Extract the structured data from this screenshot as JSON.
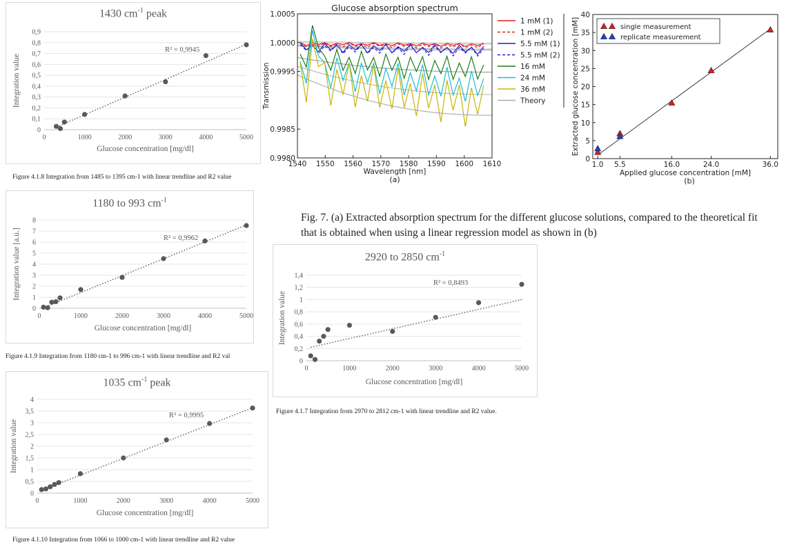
{
  "chart_data": [
    {
      "id": "c1430",
      "type": "scatter",
      "title": "1430 cm-1 peak",
      "title_main": "1430 cm",
      "title_sup": "-1",
      "title_rest": " peak",
      "xlabel": "Glucose concentration [mg/dl]",
      "ylabel": "Integration value",
      "xlim": [
        0,
        5000
      ],
      "ylim": [
        0,
        0.9
      ],
      "xticks": [
        "0",
        "1000",
        "2000",
        "3000",
        "4000",
        "5000"
      ],
      "yticks": [
        "0",
        "0,1",
        "0,2",
        "0,3",
        "0,4",
        "0,5",
        "0,6",
        "0,7",
        "0,8",
        "0,9"
      ],
      "x": [
        300,
        400,
        500,
        1000,
        2000,
        3000,
        4000,
        5000
      ],
      "y": [
        0.03,
        0.01,
        0.07,
        0.14,
        0.31,
        0.44,
        0.68,
        0.78
      ],
      "trendline": [
        [
          250,
          0.015
        ],
        [
          5000,
          0.785
        ]
      ],
      "r2": "R² = 0,9945",
      "caption": "Figure 4.1.8 Integration from 1485 to 1395 cm-1 with linear trendline and R2 value"
    },
    {
      "id": "c1180",
      "type": "scatter",
      "title": "1180 to 993 cm-1",
      "title_main": "1180 to 993 cm",
      "title_sup": "-1",
      "title_rest": "",
      "xlabel": "Glucose concentration [mg/dl]",
      "ylabel": "Integration value [a.u.]",
      "xlim": [
        0,
        5000
      ],
      "ylim": [
        0,
        8
      ],
      "xticks": [
        "0",
        "1000",
        "2000",
        "3000",
        "4000",
        "5000"
      ],
      "yticks": [
        "0",
        "1",
        "2",
        "3",
        "4",
        "5",
        "6",
        "7",
        "8"
      ],
      "x": [
        100,
        200,
        300,
        400,
        500,
        1000,
        2000,
        3000,
        4000,
        5000
      ],
      "y": [
        0.1,
        0.05,
        0.55,
        0.6,
        0.95,
        1.7,
        2.8,
        4.5,
        6.1,
        7.5
      ],
      "trendline": [
        [
          100,
          0.05
        ],
        [
          5000,
          7.55
        ]
      ],
      "r2": "R² = 0,9962",
      "caption": "Figure 4.1.9 Integration from 1180 cm-1 to 996 cm-1 with linear trendline and R2 val"
    },
    {
      "id": "c1035",
      "type": "scatter",
      "title": "1035 cm-1 peak",
      "title_main": "1035 cm",
      "title_sup": "-1",
      "title_rest": " peak",
      "xlabel": "Glucose concentration [mg/dl]",
      "ylabel": "Integration value",
      "xlim": [
        0,
        5000
      ],
      "ylim": [
        0,
        4
      ],
      "xticks": [
        "0",
        "1000",
        "2000",
        "3000",
        "4000",
        "5000"
      ],
      "yticks": [
        "0",
        "0,5",
        "1",
        "1,5",
        "2",
        "2,5",
        "3",
        "3,5",
        "4"
      ],
      "x": [
        100,
        200,
        300,
        400,
        500,
        1000,
        2000,
        3000,
        4000,
        5000
      ],
      "y": [
        0.15,
        0.18,
        0.27,
        0.37,
        0.45,
        0.83,
        1.5,
        2.27,
        2.97,
        3.63
      ],
      "trendline": [
        [
          100,
          0.12
        ],
        [
          5000,
          3.64
        ]
      ],
      "r2": "R² = 0,9995",
      "caption": "Figure 4.1.10 Integration from 1066 to 1000 cm-1 with linear trendline and R2 value"
    },
    {
      "id": "c2920",
      "type": "scatter",
      "title": "2920 to 2850 cm-1",
      "title_main": "2920 to 2850 cm",
      "title_sup": "-1",
      "title_rest": "",
      "xlabel": "Glucose concentration [mg/dl]",
      "ylabel": "Integration value",
      "xlim": [
        0,
        5000
      ],
      "ylim": [
        0,
        1.4
      ],
      "xticks": [
        "0",
        "1000",
        "2000",
        "3000",
        "4000",
        "5000"
      ],
      "yticks": [
        "0",
        "0,2",
        "0,4",
        "0,6",
        "0,8",
        "1",
        "1,2",
        "1,4"
      ],
      "x": [
        100,
        200,
        300,
        400,
        500,
        1000,
        2000,
        3000,
        4000,
        5000
      ],
      "y": [
        0.08,
        0.02,
        0.32,
        0.4,
        0.51,
        0.58,
        0.48,
        0.71,
        0.95,
        1.25
      ],
      "trendline": [
        [
          100,
          0.22
        ],
        [
          5000,
          1.0
        ]
      ],
      "r2": "R² = 0,8493",
      "caption": "Figure 4.1.7 Integration from 2970 to 2812 cm-1 with linear trendline and R2 value."
    },
    {
      "id": "spectrum",
      "type": "line",
      "title": "Glucose absorption spectrum",
      "xlabel": "Wavelength [nm]",
      "ylabel": "Transmission",
      "sublabel": "(a)",
      "xlim": [
        1540,
        1610
      ],
      "ylim": [
        0.998,
        1.0005
      ],
      "xticks": [
        "1540",
        "1550",
        "1560",
        "1570",
        "1580",
        "1590",
        "1600",
        "1610"
      ],
      "yticks": [
        "0.9980",
        "0.9985",
        "0.9995",
        "1.0000",
        "1.0005"
      ],
      "ytick_values": [
        0.998,
        0.9985,
        0.9995,
        1.0,
        1.0005
      ],
      "legend_position": "right",
      "series": [
        {
          "name": "1 mM (1)",
          "color": "#e41a1c",
          "dash": "",
          "base": 0.99998,
          "amp": 3e-05,
          "decay": 2e-05
        },
        {
          "name": "1 mM (2)",
          "color": "#e41a1c",
          "dash": "4,3",
          "base": 0.99996,
          "amp": 4e-05,
          "decay": 2e-05
        },
        {
          "name": "5.5 mM (1)",
          "color": "#1f1fd0",
          "dash": "",
          "base": 0.99992,
          "amp": 8e-05,
          "decay": 5e-05
        },
        {
          "name": "5.5 mM (2)",
          "color": "#1f1fd0",
          "dash": "4,3",
          "base": 0.9999,
          "amp": 9e-05,
          "decay": 5e-05
        },
        {
          "name": "16 mM",
          "color": "#1a7a1a",
          "dash": "",
          "base": 0.9997,
          "amp": 0.00022,
          "decay": 0.00018
        },
        {
          "name": "24 mM",
          "color": "#17becf",
          "dash": "",
          "base": 0.99955,
          "amp": 0.0003,
          "decay": 0.00035
        },
        {
          "name": "36 mM",
          "color": "#c8b400",
          "dash": "",
          "base": 0.9994,
          "amp": 0.00042,
          "decay": 0.0005
        },
        {
          "name": "Theory",
          "color": "#aaaaaa",
          "dash": "",
          "base": 0.0,
          "amp": 0.0,
          "decay": 0.0
        }
      ]
    },
    {
      "id": "regression",
      "type": "scatter",
      "xlabel": "Applied glucose concentration [mM]",
      "ylabel": "Extracted glucose concentration [mM]",
      "sublabel": "(b)",
      "xlim": [
        0,
        37.5
      ],
      "ylim": [
        0,
        40
      ],
      "xticks": [
        "1.0",
        "5.5",
        "16.0",
        "24.0",
        "36.0"
      ],
      "xtick_values": [
        1.0,
        5.5,
        16.0,
        24.0,
        36.0
      ],
      "yticks": [
        "0",
        "5",
        "10",
        "15",
        "20",
        "25",
        "30",
        "35",
        "40"
      ],
      "legend_position": "top-left",
      "series": [
        {
          "name": "single measurement",
          "color": "#e41a1c",
          "x": [
            1.0,
            5.5,
            16.0,
            24.0,
            36.0
          ],
          "y": [
            1.8,
            7.0,
            15.5,
            24.5,
            35.8
          ]
        },
        {
          "name": "replicate measurement",
          "color": "#1f3fd0",
          "x": [
            1.0,
            5.5
          ],
          "y": [
            2.8,
            6.2
          ]
        }
      ],
      "fit": [
        [
          1.0,
          1.0
        ],
        [
          36.0,
          36.0
        ]
      ]
    }
  ],
  "figure_caption": "Fig. 7. (a) Extracted absorption spectrum for the different glucose solutions, compared to the theoretical fit that is obtained when using a linear regression model as shown in (b)",
  "colors": {
    "marker": "#595959",
    "grid": "#d9d9d9",
    "trend": "#595959"
  }
}
